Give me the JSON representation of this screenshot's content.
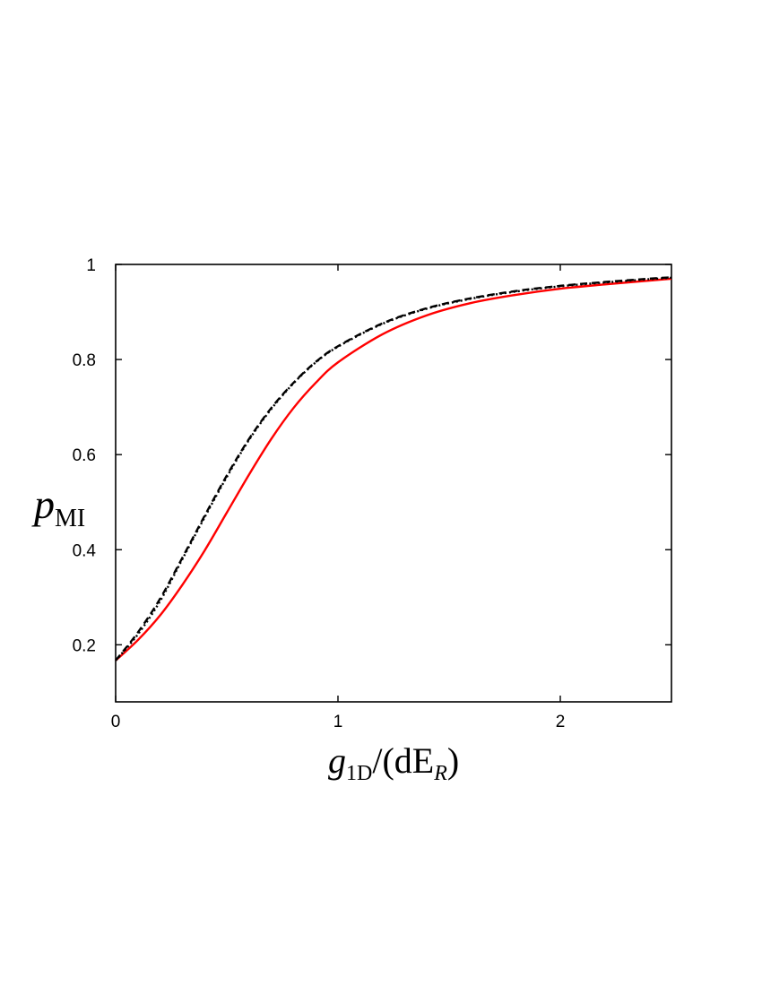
{
  "chart_data": {
    "type": "line",
    "xlabel": {
      "main": "g",
      "sub": "1D",
      "rest": "/(dE",
      "sub2": "R",
      "close": ")"
    },
    "ylabel": {
      "main": "p",
      "sub": "MI"
    },
    "xlim": [
      0,
      2.5
    ],
    "ylim": [
      0.08,
      1.0
    ],
    "xticks": [
      0,
      1,
      2
    ],
    "xtick_labels": [
      "0",
      "1",
      "2"
    ],
    "yticks": [
      0.2,
      0.4,
      0.6,
      0.8,
      1.0
    ],
    "ytick_labels": [
      "0.2",
      "0.4",
      "0.6",
      "0.8",
      "1"
    ],
    "grid": false,
    "series": [
      {
        "style": "solid",
        "color": "#ff0000",
        "x": [
          0,
          0.1,
          0.2,
          0.3,
          0.4,
          0.5,
          0.6,
          0.7,
          0.8,
          0.9,
          1.0,
          1.2,
          1.4,
          1.6,
          1.8,
          2.0,
          2.2,
          2.4,
          2.5
        ],
        "y": [
          0.167,
          0.21,
          0.262,
          0.326,
          0.398,
          0.478,
          0.558,
          0.633,
          0.698,
          0.751,
          0.794,
          0.853,
          0.893,
          0.919,
          0.936,
          0.949,
          0.958,
          0.966,
          0.97
        ]
      },
      {
        "style": "dashed",
        "color": "#000000",
        "x": [
          0,
          0.1,
          0.2,
          0.3,
          0.4,
          0.5,
          0.6,
          0.7,
          0.8,
          0.9,
          1.0,
          1.2,
          1.4,
          1.6,
          1.8,
          2.0,
          2.2,
          2.4,
          2.5
        ],
        "y": [
          0.167,
          0.226,
          0.297,
          0.383,
          0.471,
          0.556,
          0.633,
          0.698,
          0.751,
          0.795,
          0.828,
          0.876,
          0.908,
          0.929,
          0.944,
          0.955,
          0.963,
          0.97,
          0.973
        ]
      },
      {
        "style": "dotted",
        "color": "#000000",
        "x": [
          0,
          0.1,
          0.2,
          0.3,
          0.4,
          0.5,
          0.6,
          0.7,
          0.8,
          0.9,
          1.0,
          1.2,
          1.4,
          1.6,
          1.8,
          2.0,
          2.2,
          2.4,
          2.5
        ],
        "y": [
          0.167,
          0.222,
          0.292,
          0.38,
          0.468,
          0.553,
          0.631,
          0.696,
          0.75,
          0.794,
          0.827,
          0.875,
          0.907,
          0.928,
          0.943,
          0.954,
          0.962,
          0.969,
          0.972
        ]
      }
    ]
  }
}
